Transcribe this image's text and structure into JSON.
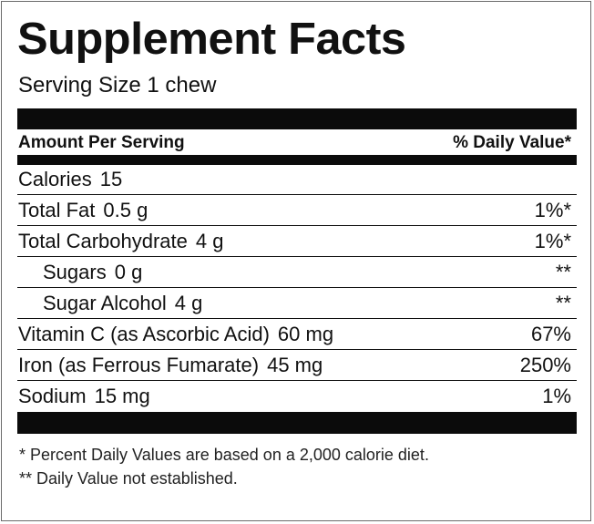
{
  "label": {
    "title": "Supplement Facts",
    "serving_size": "Serving Size 1 chew",
    "header": {
      "amount_per_serving": "Amount Per Serving",
      "daily_value": "% Daily Value*"
    },
    "rows": [
      {
        "name": "Calories",
        "amount": "15",
        "dv": ""
      },
      {
        "name": "Total Fat",
        "amount": "0.5 g",
        "dv": "1%*"
      },
      {
        "name": "Total Carbohydrate",
        "amount": "4 g",
        "dv": "1%*"
      },
      {
        "name": "Sugars",
        "amount": "0 g",
        "dv": "**"
      },
      {
        "name": "Sugar Alcohol",
        "amount": "4 g",
        "dv": "**"
      },
      {
        "name": "Vitamin C (as Ascorbic Acid)",
        "amount": "60 mg",
        "dv": "67%"
      },
      {
        "name": "Iron (as Ferrous Fumarate)",
        "amount": "45 mg",
        "dv": "250%"
      },
      {
        "name": "Sodium",
        "amount": "15 mg",
        "dv": "1%"
      }
    ],
    "footnotes": [
      "* Percent Daily Values are based on a 2,000 calorie diet.",
      "** Daily Value not established."
    ]
  },
  "colors": {
    "ink": "#111111",
    "bar": "#0b0b0b",
    "background": "#ffffff",
    "frame": "#6a6a6a"
  }
}
